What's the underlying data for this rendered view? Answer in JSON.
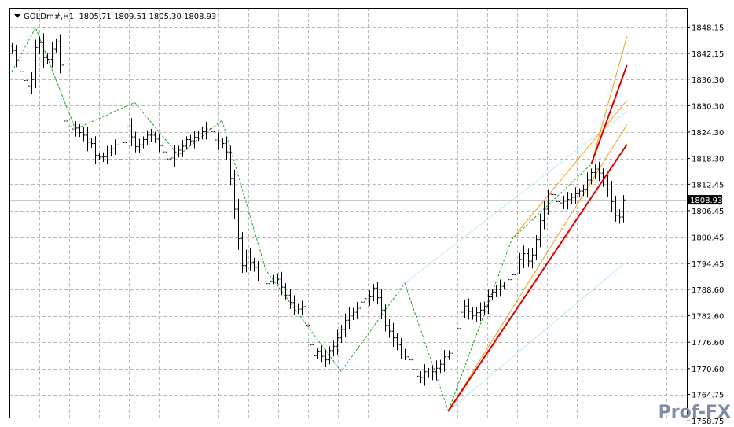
{
  "header": {
    "symbol": "GOLDm#,H1",
    "ohlc": "1805.71 1809.51 1805.30 1808.93"
  },
  "watermark": "Prof-FX",
  "colors": {
    "grid": "#b9b9b9",
    "bars": "#000000",
    "zigzag": "#22a022",
    "channel_main": "#e00000",
    "channel_inner": "#f0a020",
    "channel_outer": "#b8ecf4",
    "current_price_bg": "#000000"
  },
  "chart_data": {
    "type": "ohlc",
    "ylim": [
      1759.5,
      1852.5
    ],
    "y_ticks": [
      "1848.15",
      "1842.15",
      "1836.30",
      "1830.30",
      "1824.30",
      "1818.30",
      "1812.45",
      "1806.45",
      "1800.45",
      "1794.45",
      "1788.60",
      "1782.60",
      "1776.60",
      "1770.60",
      "1764.75",
      "1758.75"
    ],
    "current_price": "1808.93",
    "grid": true,
    "bar_count": 155,
    "closes": [
      1842.8,
      1840.5,
      1838.0,
      1836.0,
      1834.8,
      1836.2,
      1843.5,
      1844.6,
      1841.2,
      1840.8,
      1843.2,
      1844.8,
      1839.5,
      1826.8,
      1825.5,
      1825.0,
      1825.2,
      1824.2,
      1823.6,
      1822.0,
      1821.7,
      1819.0,
      1818.6,
      1818.7,
      1819.6,
      1820.5,
      1821.4,
      1818.0,
      1821.9,
      1825.5,
      1823.2,
      1821.0,
      1821.4,
      1822.6,
      1823.6,
      1823.6,
      1822.7,
      1821.2,
      1819.8,
      1818.2,
      1818.4,
      1819.6,
      1820.2,
      1821.1,
      1822.6,
      1822.3,
      1823.1,
      1823.9,
      1824.4,
      1825.0,
      1824.4,
      1822.5,
      1822.1,
      1821.7,
      1819.8,
      1813.8,
      1806.8,
      1800.1,
      1794.0,
      1796.2,
      1794.8,
      1793.6,
      1792.1,
      1790.3,
      1789.9,
      1790.5,
      1791.2,
      1790.9,
      1789.1,
      1787.3,
      1785.6,
      1784.6,
      1784.1,
      1784.7,
      1780.5,
      1776.0,
      1773.5,
      1774.6,
      1773.4,
      1772.6,
      1774.7,
      1775.7,
      1777.6,
      1779.5,
      1781.6,
      1782.7,
      1783.4,
      1784.3,
      1785.7,
      1786.5,
      1786.9,
      1788.9,
      1786.7,
      1783.9,
      1780.4,
      1779.1,
      1777.6,
      1776.0,
      1774.4,
      1773.3,
      1772.6,
      1770.4,
      1768.9,
      1768.6,
      1769.9,
      1769.4,
      1769.9,
      1770.7,
      1771.6,
      1773.3,
      1774.1,
      1778.7,
      1779.7,
      1783.4,
      1784.8,
      1783.6,
      1782.7,
      1783.3,
      1783.9,
      1784.8,
      1786.9,
      1788.0,
      1788.6,
      1789.3,
      1789.6,
      1790.8,
      1791.9,
      1793.7,
      1795.4,
      1796.7,
      1795.0,
      1796.4,
      1799.9,
      1804.2,
      1806.8,
      1810.2,
      1810.1,
      1808.5,
      1808.2,
      1808.6,
      1809.0,
      1809.5,
      1810.3,
      1810.9,
      1811.3,
      1813.4,
      1815.1,
      1815.9,
      1815.0,
      1813.0,
      1811.2,
      1808.5,
      1805.4,
      1805.0,
      1808.9
    ],
    "zigzag": [
      [
        0,
        1838.0
      ],
      [
        6,
        1848.0
      ],
      [
        16,
        1825.0
      ],
      [
        31,
        1831.0
      ],
      [
        42,
        1819.0
      ],
      [
        53,
        1827.0
      ],
      [
        64,
        1793.0
      ],
      [
        83,
        1770.0
      ],
      [
        99,
        1790.0
      ],
      [
        110,
        1761.0
      ],
      [
        126,
        1800.0
      ],
      [
        146,
        1817.0
      ]
    ],
    "channels": {
      "main": [
        {
          "from": [
            110,
            1761.0
          ],
          "to": [
            155,
            1821.5
          ]
        },
        {
          "from": [
            146,
            1817.0
          ],
          "to": [
            155,
            1839.5
          ]
        }
      ],
      "inner": [
        {
          "from": [
            110,
            1761.0
          ],
          "to": [
            155,
            1826.0
          ]
        },
        {
          "from": [
            126,
            1800.0
          ],
          "to": [
            155,
            1831.5
          ]
        },
        {
          "from": [
            146,
            1817.0
          ],
          "to": [
            155,
            1846.0
          ]
        }
      ],
      "outer": [
        {
          "from": [
            110,
            1761.0
          ],
          "to": [
            155,
            1795.0
          ]
        },
        {
          "from": [
            99,
            1790.0
          ],
          "to": [
            155,
            1829.0
          ]
        }
      ]
    }
  }
}
